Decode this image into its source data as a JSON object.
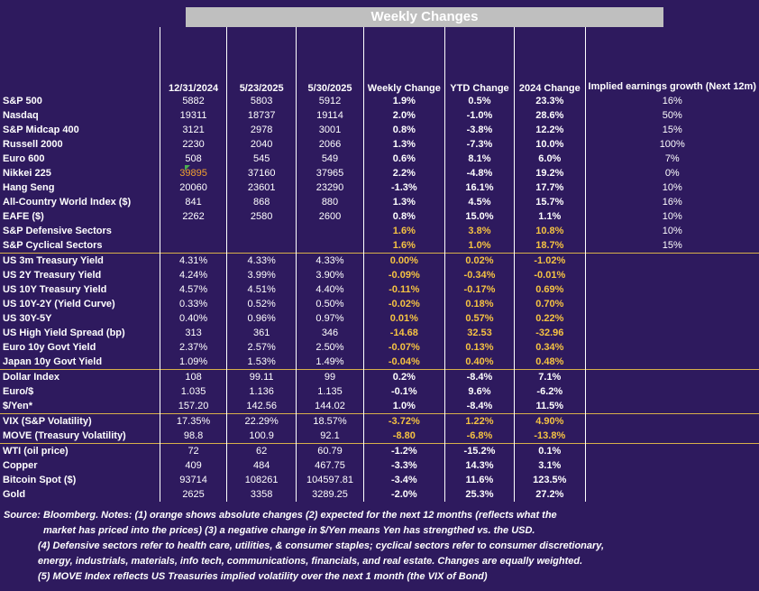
{
  "title": "Weekly Changes",
  "headers": [
    "",
    "12/31/2024",
    "5/23/2025",
    "5/30/2025",
    "Weekly Change",
    "YTD Change",
    "2024 Change",
    "Implied earnings growth (Next 12m)"
  ],
  "rows": [
    {
      "label": "S&P 500",
      "v1": "5882",
      "v2": "5803",
      "v3": "5912",
      "weekly": "1.9%",
      "ytd": "0.5%",
      "y2024": "23.3%",
      "implied": "16%"
    },
    {
      "label": "Nasdaq",
      "v1": "19311",
      "v2": "18737",
      "v3": "19114",
      "weekly": "2.0%",
      "ytd": "-1.0%",
      "y2024": "28.6%",
      "implied": "50%"
    },
    {
      "label": "S&P Midcap 400",
      "v1": "3121",
      "v2": "2978",
      "v3": "3001",
      "weekly": "0.8%",
      "ytd": "-3.8%",
      "y2024": "12.2%",
      "implied": "15%"
    },
    {
      "label": "Russell 2000",
      "v1": "2230",
      "v2": "2040",
      "v3": "2066",
      "weekly": "1.3%",
      "ytd": "-7.3%",
      "y2024": "10.0%",
      "implied": "100%"
    },
    {
      "label": "Euro 600",
      "v1": "508",
      "v2": "545",
      "v3": "549",
      "weekly": "0.6%",
      "ytd": "8.1%",
      "y2024": "6.0%",
      "implied": "7%"
    },
    {
      "label": "Nikkei 225",
      "v1": "39895",
      "v2": "37160",
      "v3": "37965",
      "weekly": "2.2%",
      "ytd": "-4.8%",
      "y2024": "19.2%",
      "implied": "0%"
    },
    {
      "label": "Hang Seng",
      "v1": "20060",
      "v2": "23601",
      "v3": "23290",
      "weekly": "-1.3%",
      "ytd": "16.1%",
      "y2024": "17.7%",
      "implied": "10%"
    },
    {
      "label": "All-Country World Index ($)",
      "v1": "841",
      "v2": "868",
      "v3": "880",
      "weekly": "1.3%",
      "ytd": "4.5%",
      "y2024": "15.7%",
      "implied": "16%"
    },
    {
      "label": "EAFE ($)",
      "v1": "2262",
      "v2": "2580",
      "v3": "2600",
      "weekly": "0.8%",
      "ytd": "15.0%",
      "y2024": "1.1%",
      "implied": "10%"
    },
    {
      "label": "S&P Defensive Sectors",
      "v1": "",
      "v2": "",
      "v3": "",
      "weekly": "1.6%",
      "ytd": "3.8%",
      "y2024": "10.8%",
      "implied": "10%"
    },
    {
      "label": "S&P Cyclical Sectors",
      "v1": "",
      "v2": "",
      "v3": "",
      "weekly": "1.6%",
      "ytd": "1.0%",
      "y2024": "18.7%",
      "implied": "15%"
    },
    {
      "label": "US 3m Treasury Yield",
      "v1": "4.31%",
      "v2": "4.33%",
      "v3": "4.33%",
      "weekly": "0.00%",
      "ytd": "0.02%",
      "y2024": "-1.02%",
      "implied": ""
    },
    {
      "label": "US 2Y Treasury Yield",
      "v1": "4.24%",
      "v2": "3.99%",
      "v3": "3.90%",
      "weekly": "-0.09%",
      "ytd": "-0.34%",
      "y2024": "-0.01%",
      "implied": ""
    },
    {
      "label": "US 10Y Treasury Yield",
      "v1": "4.57%",
      "v2": "4.51%",
      "v3": "4.40%",
      "weekly": "-0.11%",
      "ytd": "-0.17%",
      "y2024": "0.69%",
      "implied": ""
    },
    {
      "label": "US 10Y-2Y (Yield Curve)",
      "v1": "0.33%",
      "v2": "0.52%",
      "v3": "0.50%",
      "weekly": "-0.02%",
      "ytd": "0.18%",
      "y2024": "0.70%",
      "implied": ""
    },
    {
      "label": "US 30Y-5Y",
      "v1": "0.40%",
      "v2": "0.96%",
      "v3": "0.97%",
      "weekly": "0.01%",
      "ytd": "0.57%",
      "y2024": "0.22%",
      "implied": ""
    },
    {
      "label": "US High Yield Spread (bp)",
      "v1": "313",
      "v2": "361",
      "v3": "346",
      "weekly": "-14.68",
      "ytd": "32.53",
      "y2024": "-32.96",
      "implied": ""
    },
    {
      "label": "Euro 10y Govt Yield",
      "v1": "2.37%",
      "v2": "2.57%",
      "v3": "2.50%",
      "weekly": "-0.07%",
      "ytd": "0.13%",
      "y2024": "0.34%",
      "implied": ""
    },
    {
      "label": "Japan 10y Govt Yield",
      "v1": "1.09%",
      "v2": "1.53%",
      "v3": "1.49%",
      "weekly": "-0.04%",
      "ytd": "0.40%",
      "y2024": "0.48%",
      "implied": ""
    },
    {
      "label": "Dollar Index",
      "v1": "108",
      "v2": "99.11",
      "v3": "99",
      "weekly": "0.2%",
      "ytd": "-8.4%",
      "y2024": "7.1%",
      "implied": ""
    },
    {
      "label": "Euro/$",
      "v1": "1.035",
      "v2": "1.136",
      "v3": "1.135",
      "weekly": "-0.1%",
      "ytd": "9.6%",
      "y2024": "-6.2%",
      "implied": ""
    },
    {
      "label": "$/Yen*",
      "v1": "157.20",
      "v2": "142.56",
      "v3": "144.02",
      "weekly": "1.0%",
      "ytd": "-8.4%",
      "y2024": "11.5%",
      "implied": ""
    },
    {
      "label": "VIX (S&P Volatility)",
      "v1": "17.35%",
      "v2": "22.29%",
      "v3": "18.57%",
      "weekly": "-3.72%",
      "ytd": "1.22%",
      "y2024": "4.90%",
      "implied": ""
    },
    {
      "label": "MOVE (Treasury Volatility)",
      "v1": "98.8",
      "v2": "100.9",
      "v3": "92.1",
      "weekly": "-8.80",
      "ytd": "-6.8%",
      "y2024": "-13.8%",
      "implied": ""
    },
    {
      "label": "WTI (oil price)",
      "v1": "72",
      "v2": "62",
      "v3": "60.79",
      "weekly": "-1.2%",
      "ytd": "-15.2%",
      "y2024": "0.1%",
      "implied": ""
    },
    {
      "label": "Copper",
      "v1": "409",
      "v2": "484",
      "v3": "467.75",
      "weekly": "-3.3%",
      "ytd": "14.3%",
      "y2024": "3.1%",
      "implied": ""
    },
    {
      "label": "Bitcoin Spot ($)",
      "v1": "93714",
      "v2": "108261",
      "v3": "104597.81",
      "weekly": "-3.4%",
      "ytd": "11.6%",
      "y2024": "123.5%",
      "implied": ""
    },
    {
      "label": "Gold",
      "v1": "2625",
      "v2": "3358",
      "v3": "3289.25",
      "weekly": "-2.0%",
      "ytd": "25.3%",
      "y2024": "27.2%",
      "implied": ""
    }
  ],
  "orange_rows": [
    9,
    10,
    11,
    12,
    13,
    14,
    15,
    16,
    17,
    18,
    22,
    23
  ],
  "separator_rows": [
    11,
    19,
    22,
    24
  ],
  "orange_cells": [
    {
      "row": 5,
      "col": "v1"
    }
  ],
  "colors": {
    "background": "#2e1a5e",
    "orange": "#f5c242",
    "separator": "#d8b04a",
    "title_bar": "#bfbfbf"
  },
  "notes": [
    "Source: Bloomberg. Notes: (1) orange shows absolute changes (2) expected for the next 12 months (reflects what the",
    "market has priced into the prices) (3) a negative change in $/Yen means Yen has strengthed vs. the USD.",
    "(4) Defensive sectors refer to health care, utilities, & consumer staples; cyclical sectors refer to consumer discretionary,",
    "energy, industrials, materials, info tech, communications, financials, and real estate. Changes are equally weighted.",
    "(5) MOVE Index reflects US Treasuries implied volatility over the next 1 month (the VIX of Bond)"
  ]
}
